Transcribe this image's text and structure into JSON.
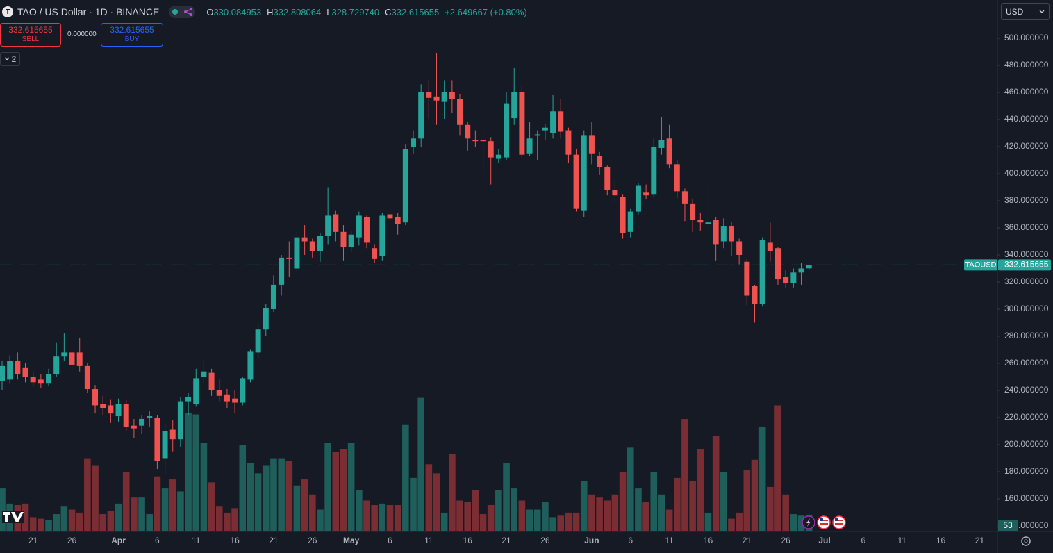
{
  "header": {
    "symbol": "TAO / US Dollar · 1D · BINANCE",
    "logo": "T",
    "o_label": "O",
    "o": "330.084953",
    "h_label": "H",
    "h": "332.808064",
    "l_label": "L",
    "l": "328.729740",
    "c_label": "C",
    "c": "332.615655",
    "change": "+2.649667 (+0.80%)"
  },
  "trade": {
    "sell_price": "332.615655",
    "sell_label": "SELL",
    "spread": "0.000000",
    "buy_price": "332.615655",
    "buy_label": "BUY"
  },
  "indicators_count": "2",
  "currency": "USD",
  "chart_data": {
    "type": "candlestick",
    "symbol_label": "TAOUSD",
    "up_color": "#26a69a",
    "down_color": "#ef5350",
    "volume_up_color": "#1f5f5b",
    "volume_down_color": "#7a2e33",
    "x": [
      "03-17",
      "03-18",
      "03-19",
      "03-20",
      "03-21",
      "03-22",
      "03-23",
      "03-24",
      "03-25",
      "03-26",
      "03-27",
      "03-28",
      "03-29",
      "03-30",
      "03-31",
      "04-01",
      "04-02",
      "04-03",
      "04-04",
      "04-05",
      "04-06",
      "04-07",
      "04-08",
      "04-09",
      "04-10",
      "04-11",
      "04-12",
      "04-13",
      "04-14",
      "04-15",
      "04-16",
      "04-17",
      "04-18",
      "04-19",
      "04-20",
      "04-21",
      "04-22",
      "04-23",
      "04-24",
      "04-25",
      "04-26",
      "04-27",
      "04-28",
      "04-29",
      "04-30",
      "05-01",
      "05-02",
      "05-03",
      "05-04",
      "05-05",
      "05-06",
      "05-07",
      "05-08",
      "05-09",
      "05-10",
      "05-11",
      "05-12",
      "05-13",
      "05-14",
      "05-15",
      "05-16",
      "05-17",
      "05-18",
      "05-19",
      "05-20",
      "05-21",
      "05-22",
      "05-23",
      "05-24",
      "05-25",
      "05-26",
      "05-27",
      "05-28",
      "05-29",
      "05-30",
      "05-31",
      "06-01",
      "06-02",
      "06-03",
      "06-04",
      "06-05",
      "06-06",
      "06-07",
      "06-08",
      "06-09",
      "06-10",
      "06-11",
      "06-12",
      "06-13",
      "06-14",
      "06-15",
      "06-16",
      "06-17",
      "06-18",
      "06-19",
      "06-20",
      "06-21",
      "06-22",
      "06-23",
      "06-24",
      "06-25",
      "06-26",
      "06-27",
      "06-28",
      "06-29"
    ],
    "open": [
      247,
      248,
      262,
      257,
      250,
      248,
      245,
      252,
      265,
      268,
      268,
      258,
      241,
      230,
      229,
      221,
      230,
      214,
      214,
      220,
      220,
      190,
      211,
      204,
      232,
      230,
      250,
      253,
      240,
      237,
      234,
      231,
      248,
      268,
      285,
      300,
      318,
      338,
      330,
      353,
      350,
      343,
      354,
      370,
      357,
      346,
      353,
      368,
      345,
      339,
      370,
      368,
      364,
      420,
      426,
      460,
      457,
      453,
      460,
      455,
      436,
      425,
      425,
      424,
      411,
      412,
      441,
      460,
      415,
      428,
      432,
      430,
      446,
      432,
      414,
      373,
      428,
      413,
      405,
      388,
      383,
      357,
      372,
      386,
      385,
      419,
      426,
      407,
      387,
      378,
      366,
      363,
      366,
      350,
      361,
      350,
      335,
      317,
      304,
      349,
      345,
      324,
      319,
      327,
      330.084953
    ],
    "high": [
      262,
      266,
      268,
      260,
      254,
      252,
      256,
      275,
      282,
      271,
      279,
      260,
      244,
      236,
      233,
      234,
      233,
      219,
      222,
      225,
      222,
      216,
      218,
      235,
      238,
      256,
      263,
      256,
      248,
      241,
      240,
      250,
      270,
      288,
      304,
      325,
      340,
      350,
      357,
      362,
      352,
      356,
      390,
      373,
      362,
      358,
      372,
      369,
      348,
      371,
      376,
      371,
      422,
      432,
      466,
      469,
      489,
      469,
      469,
      459,
      438,
      432,
      432,
      427,
      418,
      460,
      478,
      465,
      438,
      432,
      437,
      458,
      455,
      434,
      418,
      432,
      438,
      416,
      406,
      395,
      385,
      374,
      393,
      392,
      426,
      442,
      436,
      410,
      389,
      381,
      371,
      392,
      368,
      367,
      364,
      352,
      337,
      318,
      353,
      364,
      346,
      329,
      330,
      334,
      332.808064
    ],
    "low": [
      240,
      245,
      248,
      246,
      243,
      242,
      243,
      250,
      262,
      255,
      254,
      238,
      223,
      222,
      216,
      217,
      210,
      205,
      208,
      213,
      182,
      178,
      195,
      198,
      222,
      228,
      245,
      236,
      232,
      227,
      223,
      229,
      246,
      264,
      280,
      298,
      310,
      324,
      326,
      340,
      338,
      335,
      348,
      350,
      336,
      342,
      347,
      345,
      334,
      336,
      364,
      355,
      362,
      415,
      420,
      440,
      436,
      440,
      445,
      428,
      417,
      420,
      400,
      392,
      408,
      410,
      436,
      412,
      413,
      410,
      425,
      426,
      426,
      408,
      372,
      368,
      407,
      399,
      384,
      379,
      352,
      353,
      370,
      381,
      383,
      414,
      404,
      382,
      365,
      357,
      358,
      357,
      336,
      345,
      339,
      333,
      303,
      290,
      302,
      335,
      318,
      316,
      316,
      318,
      328.72974
    ],
    "close": [
      258,
      262,
      252,
      250,
      246,
      245,
      252,
      265,
      268,
      259,
      258,
      241,
      229,
      227,
      223,
      230,
      213,
      212,
      219,
      221,
      188,
      210,
      204,
      232,
      235,
      249,
      254,
      240,
      236,
      232,
      231,
      249,
      269,
      285,
      301,
      318,
      338,
      337,
      353,
      350,
      343,
      354,
      369,
      357,
      346,
      355,
      369,
      349,
      337,
      369,
      367,
      363,
      418,
      426,
      460,
      456,
      454,
      460,
      455,
      436,
      426,
      424,
      424,
      412,
      414,
      452,
      460,
      414,
      426,
      429,
      434,
      446,
      431,
      414,
      374,
      428,
      415,
      405,
      388,
      384,
      356,
      372,
      391,
      384,
      420,
      425,
      407,
      387,
      378,
      366,
      364,
      364,
      348,
      361,
      350,
      340,
      310,
      304,
      351,
      343,
      322,
      319,
      327,
      330,
      332.615655
    ],
    "volume": [
      140,
      90,
      85,
      90,
      45,
      40,
      35,
      55,
      80,
      70,
      60,
      240,
      215,
      55,
      65,
      90,
      195,
      110,
      110,
      55,
      180,
      140,
      170,
      130,
      390,
      385,
      290,
      160,
      80,
      60,
      75,
      285,
      225,
      190,
      215,
      240,
      240,
      230,
      150,
      170,
      120,
      70,
      290,
      260,
      270,
      290,
      135,
      100,
      85,
      90,
      85,
      85,
      350,
      175,
      440,
      220,
      190,
      60,
      255,
      100,
      95,
      135,
      55,
      85,
      135,
      225,
      140,
      100,
      70,
      70,
      95,
      45,
      50,
      60,
      60,
      165,
      120,
      110,
      100,
      120,
      195,
      275,
      140,
      95,
      195,
      120,
      70,
      175,
      370,
      165,
      270,
      60,
      315,
      195,
      40,
      60,
      200,
      235,
      345,
      145,
      415,
      120,
      55,
      50,
      53
    ],
    "ylim": [
      136.4,
      528.2
    ],
    "yticks": [
      {
        "value": 140,
        "label": "140.000000"
      },
      {
        "value": 160,
        "label": "160.000000"
      },
      {
        "value": 180,
        "label": "180.000000"
      },
      {
        "value": 200,
        "label": "200.000000"
      },
      {
        "value": 220,
        "label": "220.000000"
      },
      {
        "value": 240,
        "label": "240.000000"
      },
      {
        "value": 260,
        "label": "260.000000"
      },
      {
        "value": 280,
        "label": "280.000000"
      },
      {
        "value": 300,
        "label": "300.000000"
      },
      {
        "value": 320,
        "label": "320.000000"
      },
      {
        "value": 340,
        "label": "340.000000"
      },
      {
        "value": 360,
        "label": "360.000000"
      },
      {
        "value": 380,
        "label": "380.000000"
      },
      {
        "value": 400,
        "label": "400.000000"
      },
      {
        "value": 420,
        "label": "420.000000"
      },
      {
        "value": 440,
        "label": "440.000000"
      },
      {
        "value": 460,
        "label": "460.000000"
      },
      {
        "value": 480,
        "label": "480.000000"
      },
      {
        "value": 500,
        "label": "500.000000"
      }
    ],
    "xticks": [
      {
        "value": "03-21",
        "label": "21"
      },
      {
        "value": "03-26",
        "label": "26"
      },
      {
        "value": "04-01",
        "label": "Apr"
      },
      {
        "value": "04-06",
        "label": "6"
      },
      {
        "value": "04-11",
        "label": "11"
      },
      {
        "value": "04-16",
        "label": "16"
      },
      {
        "value": "04-21",
        "label": "21"
      },
      {
        "value": "04-26",
        "label": "26"
      },
      {
        "value": "05-01",
        "label": "May"
      },
      {
        "value": "05-06",
        "label": "6"
      },
      {
        "value": "05-11",
        "label": "11"
      },
      {
        "value": "05-16",
        "label": "16"
      },
      {
        "value": "05-21",
        "label": "21"
      },
      {
        "value": "05-26",
        "label": "26"
      },
      {
        "value": "06-01",
        "label": "Jun"
      },
      {
        "value": "06-06",
        "label": "6"
      },
      {
        "value": "06-11",
        "label": "11"
      },
      {
        "value": "06-16",
        "label": "16"
      },
      {
        "value": "06-21",
        "label": "21"
      },
      {
        "value": "06-26",
        "label": "26"
      },
      {
        "value": "07-01",
        "label": "Jul"
      },
      {
        "value": "07-06",
        "label": "6"
      },
      {
        "value": "07-11",
        "label": "11"
      },
      {
        "value": "07-16",
        "label": "16"
      },
      {
        "value": "07-21",
        "label": "21"
      }
    ]
  }
}
